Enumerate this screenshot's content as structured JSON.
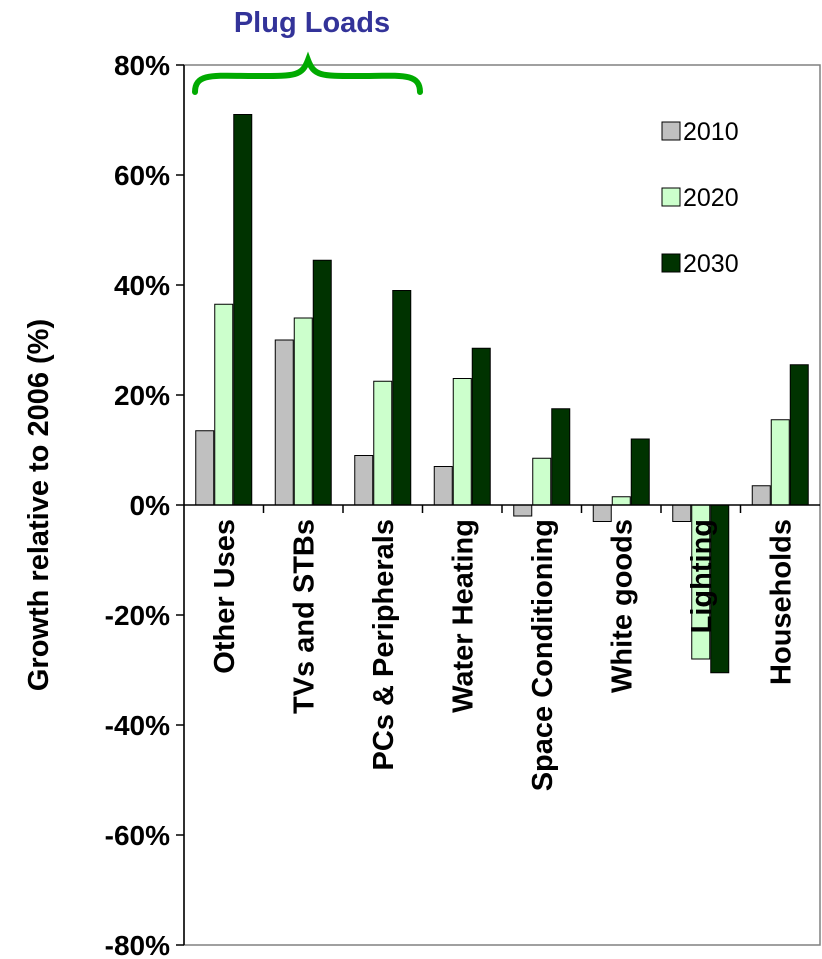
{
  "chart_data": {
    "type": "bar",
    "title": "",
    "ylabel": "Growth relative to 2006 (%)",
    "xlabel": "",
    "ylim": [
      -80,
      80
    ],
    "yticks": [
      80,
      60,
      40,
      20,
      0,
      -20,
      -40,
      -60,
      -80
    ],
    "ytick_labels": [
      "80%",
      "60%",
      "40%",
      "20%",
      "0%",
      "-20%",
      "-40%",
      "-60%",
      "-80%"
    ],
    "categories": [
      "Other Uses",
      "TVs and STBs",
      "PCs & Peripherals",
      "Water Heating",
      "Space Conditioning",
      "White goods",
      "Lighting",
      "Households"
    ],
    "series": [
      {
        "name": "2010",
        "color": "#c0c0c0",
        "values": [
          13.5,
          30,
          9,
          7,
          -2,
          -3,
          -3,
          3.5
        ]
      },
      {
        "name": "2020",
        "color": "#ccffcc",
        "values": [
          36.5,
          34,
          22.5,
          23,
          8.5,
          1.5,
          -28,
          15.5
        ]
      },
      {
        "name": "2030",
        "color": "#003300",
        "values": [
          71,
          44.5,
          39,
          28.5,
          17.5,
          12,
          -30.5,
          25.5
        ]
      }
    ],
    "legend_position": "top-right",
    "grid": false,
    "annotations": [
      {
        "text": "Plug Loads",
        "color": "#333399",
        "brace_over_categories": [
          "Other Uses",
          "TVs and STBs",
          "PCs & Peripherals"
        ]
      }
    ]
  }
}
